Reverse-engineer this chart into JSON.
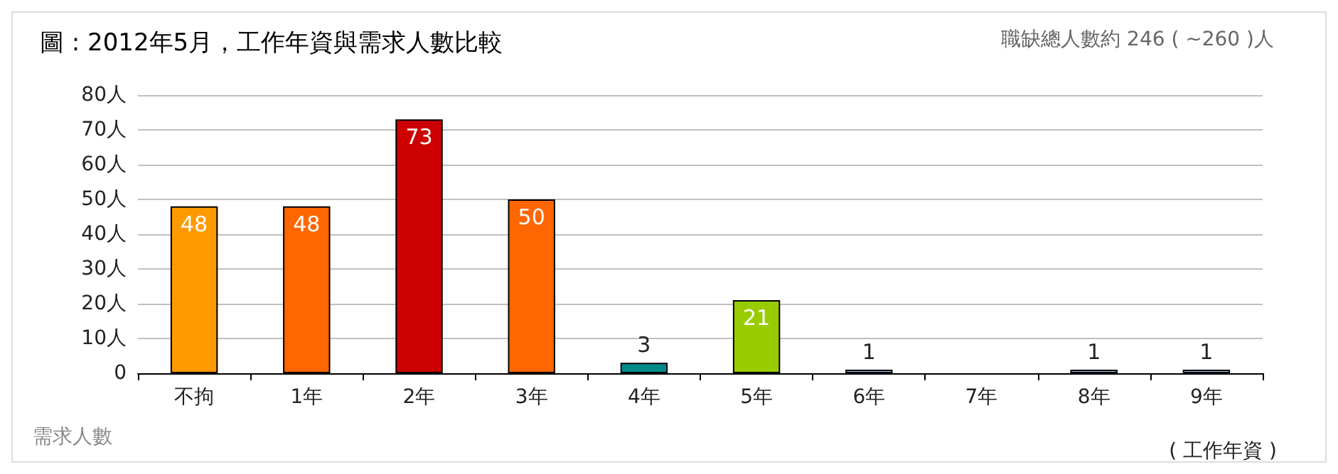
{
  "chart_data": {
    "type": "bar",
    "title": "圖 : 2012年5月，工作年資與需求人數比較",
    "annotations": [
      "職缺總人數約 246 ( ~260 )人"
    ],
    "xlabel": "( 工作年資 )",
    "ylabel": "需求人數",
    "categories": [
      "不拘",
      "1年",
      "2年",
      "3年",
      "4年",
      "5年",
      "6年",
      "7年",
      "8年",
      "9年"
    ],
    "values": [
      48,
      48,
      73,
      50,
      3,
      21,
      1,
      null,
      1,
      1
    ],
    "value_labels": [
      "48",
      "48",
      "73",
      "50",
      "3",
      "21",
      "1",
      null,
      "1",
      "1"
    ],
    "colors": [
      "#ff9900",
      "#ff6600",
      "#cc0000",
      "#ff6600",
      "#008b8b",
      "#99cc00",
      "#99ccff",
      null,
      "#99ccff",
      "#99ccff"
    ],
    "ylim": [
      0,
      80
    ],
    "yticks": [
      0,
      {
        "value": 10,
        "label": "10人"
      },
      {
        "value": 20,
        "label": "20人"
      },
      {
        "value": 30,
        "label": "30人"
      },
      {
        "value": 40,
        "label": "40人"
      },
      {
        "value": 50,
        "label": "50人"
      },
      {
        "value": 60,
        "label": "60人"
      },
      {
        "value": 70,
        "label": "70人"
      },
      {
        "value": 80,
        "label": "80人"
      }
    ],
    "grid": "y"
  }
}
